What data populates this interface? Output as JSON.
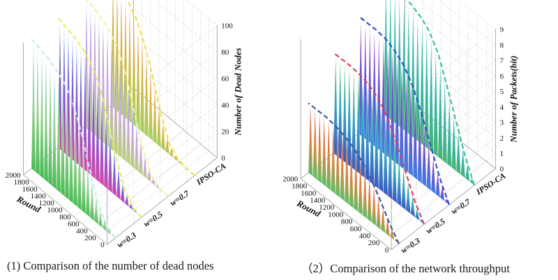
{
  "captions": {
    "left": "(1) Comparison of the number of dead nodes",
    "right": "（2）Comparison of the network throughput"
  },
  "chart_data": [
    {
      "type": "area",
      "title": "",
      "xlabel": "Round",
      "ylabel": "",
      "zlabel": "Number of Dead Nodes",
      "x_ticks": [
        "2000",
        "1800",
        "1600",
        "1400",
        "1200",
        "1000",
        "800",
        "600",
        "400",
        "200",
        "0"
      ],
      "z_ticks": [
        "0",
        "20",
        "40",
        "60",
        "80",
        "100"
      ],
      "xlim": [
        0,
        2000
      ],
      "zlim": [
        0,
        100
      ],
      "categories": [
        "w=0.3",
        "w=0.5",
        "w=0.7",
        "IPSO-CA"
      ],
      "series": [
        {
          "name": "w=0.3",
          "x": [
            0,
            200,
            400,
            600,
            800,
            1000,
            1200,
            1400,
            1600,
            1800,
            2000
          ],
          "values": [
            0,
            5,
            15,
            35,
            58,
            75,
            85,
            90,
            94,
            96,
            98
          ]
        },
        {
          "name": "w=0.5",
          "x": [
            0,
            200,
            400,
            600,
            800,
            1000,
            1200,
            1400,
            1600,
            1800,
            2000
          ],
          "values": [
            0,
            2,
            10,
            28,
            52,
            72,
            84,
            90,
            94,
            96,
            98
          ]
        },
        {
          "name": "w=0.7",
          "x": [
            0,
            200,
            400,
            600,
            800,
            1000,
            1200,
            1400,
            1600,
            1800,
            2000
          ],
          "values": [
            0,
            1,
            5,
            20,
            42,
            65,
            80,
            88,
            93,
            96,
            98
          ]
        },
        {
          "name": "IPSO-CA",
          "x": [
            0,
            200,
            400,
            600,
            800,
            1000,
            1200,
            1400,
            1600,
            1800,
            2000
          ],
          "values": [
            0,
            0,
            2,
            8,
            25,
            48,
            68,
            82,
            90,
            95,
            98
          ]
        }
      ]
    },
    {
      "type": "area",
      "title": "",
      "xlabel": "Round",
      "ylabel": "",
      "zlabel": "Number of Packets(bit)",
      "x_ticks": [
        "2000",
        "1800",
        "1600",
        "1400",
        "1200",
        "1000",
        "800",
        "600",
        "400",
        "200",
        "0"
      ],
      "z_ticks": [
        "0",
        "1",
        "2",
        "3",
        "4",
        "5",
        "6",
        "7",
        "8",
        "9"
      ],
      "xlim": [
        0,
        2000
      ],
      "zlim": [
        0,
        9
      ],
      "categories": [
        "w=0.3",
        "w=0.5",
        "w=0.7",
        "IPSO-CA"
      ],
      "series": [
        {
          "name": "w=0.3",
          "x": [
            0,
            200,
            400,
            600,
            800,
            1000,
            1200,
            1400,
            1600,
            1800,
            2000
          ],
          "values": [
            0,
            0.8,
            1.8,
            2.7,
            3.4,
            3.9,
            4.2,
            4.4,
            4.5,
            4.5,
            4.5
          ]
        },
        {
          "name": "w=0.5",
          "x": [
            0,
            200,
            400,
            600,
            800,
            1000,
            1200,
            1400,
            1600,
            1800,
            2000
          ],
          "values": [
            0,
            1.0,
            2.4,
            3.8,
            5.0,
            5.8,
            6.2,
            6.4,
            6.5,
            6.5,
            6.5
          ]
        },
        {
          "name": "w=0.7",
          "x": [
            0,
            200,
            400,
            600,
            800,
            1000,
            1200,
            1400,
            1600,
            1800,
            2000
          ],
          "values": [
            0,
            1.2,
            2.8,
            4.4,
            5.8,
            6.7,
            7.2,
            7.5,
            7.6,
            7.6,
            7.6
          ]
        },
        {
          "name": "IPSO-CA",
          "x": [
            0,
            200,
            400,
            600,
            800,
            1000,
            1200,
            1400,
            1600,
            1800,
            2000
          ],
          "values": [
            0,
            1.4,
            3.2,
            5.0,
            6.7,
            7.7,
            8.2,
            8.5,
            8.6,
            8.7,
            8.7
          ]
        }
      ]
    }
  ]
}
